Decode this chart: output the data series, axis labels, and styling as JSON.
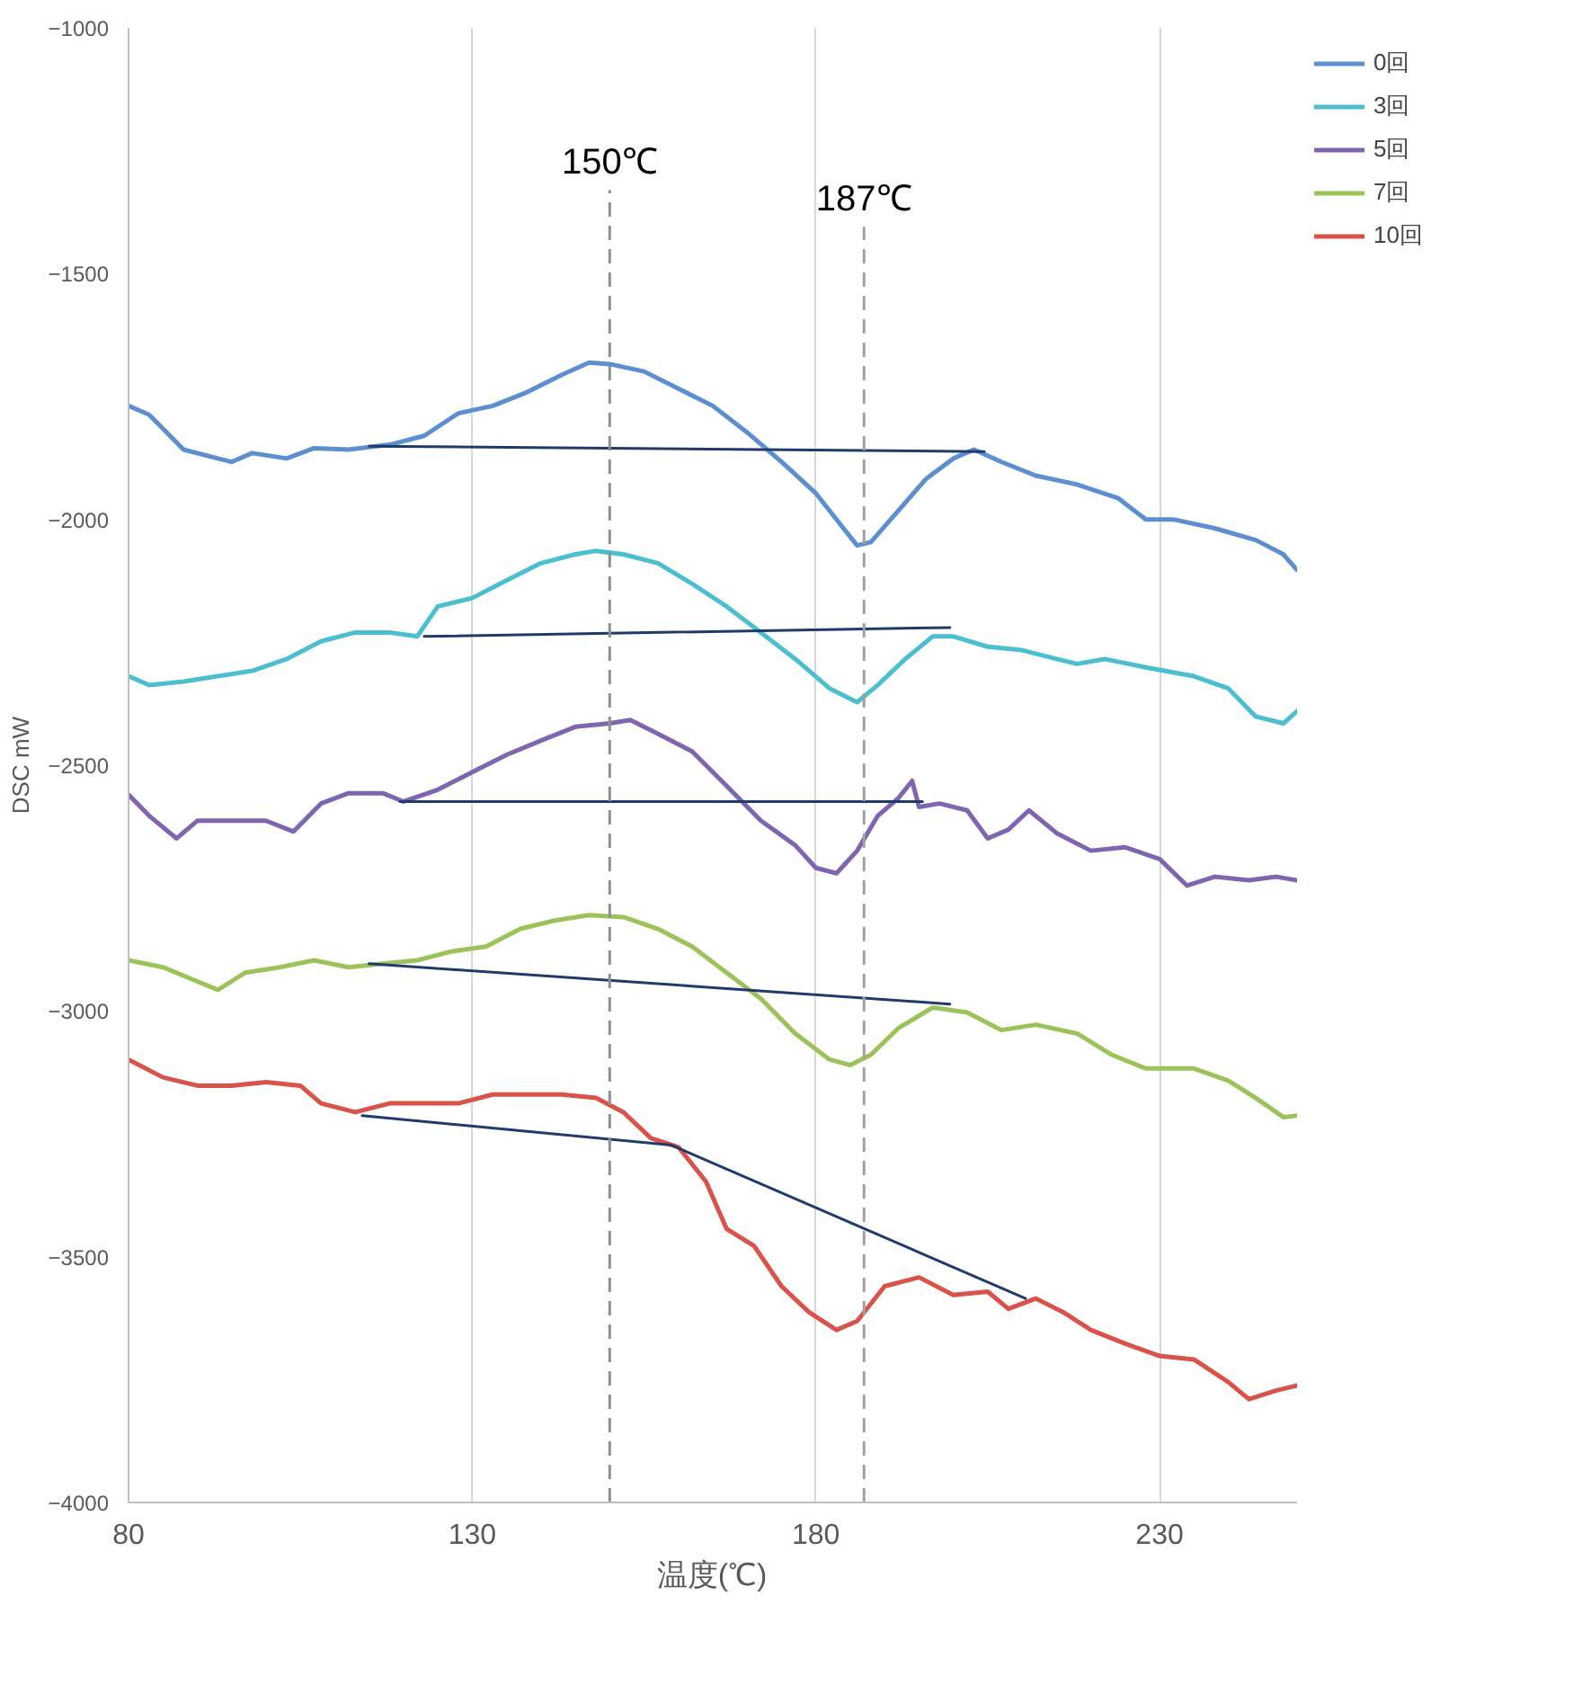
{
  "chart_data": {
    "type": "line",
    "xlabel": "温度(℃)",
    "ylabel": "DSC mW",
    "xlim": [
      80,
      250
    ],
    "ylim": [
      -4000,
      -1000
    ],
    "xticks": [
      80,
      130,
      180,
      230
    ],
    "yticks": [
      -4000,
      -3500,
      -3000,
      -2500,
      -2000,
      -1500,
      -1000
    ],
    "grid": "x",
    "legend": "right",
    "ref_lines": [
      {
        "axis": "x",
        "value": 150,
        "label": "150℃",
        "color": "#909090",
        "line_style": "dashed"
      },
      {
        "axis": "x",
        "value": 187,
        "label": "187℃",
        "color": "#a0a0a0",
        "line_style": "dashed"
      }
    ],
    "series": [
      {
        "name": "0回",
        "color": "#5b8fcf",
        "x": [
          80,
          83,
          88,
          93,
          95,
          98,
          103,
          107,
          112,
          118,
          123,
          128,
          133,
          138,
          143,
          147,
          150,
          155,
          160,
          165,
          170,
          175,
          180,
          184,
          186,
          188,
          192,
          196,
          200,
          203,
          207,
          212,
          218,
          224,
          228,
          232,
          238,
          244,
          248,
          250
        ],
        "values": [
          -1769,
          -1787,
          -1858,
          -1876,
          -1883,
          -1865,
          -1876,
          -1855,
          -1858,
          -1848,
          -1830,
          -1784,
          -1769,
          -1741,
          -1706,
          -1681,
          -1684,
          -1699,
          -1734,
          -1769,
          -1823,
          -1883,
          -1947,
          -2018,
          -2053,
          -2046,
          -1982,
          -1918,
          -1876,
          -1858,
          -1883,
          -1911,
          -1929,
          -1957,
          -2000,
          -2000,
          -2018,
          -2042,
          -2071,
          -2103
        ]
      },
      {
        "name": "3回",
        "color": "#4bbfcf",
        "x": [
          80,
          83,
          88,
          93,
          98,
          103,
          108,
          113,
          118,
          122,
          125,
          130,
          135,
          140,
          145,
          148,
          152,
          157,
          162,
          167,
          172,
          177,
          182,
          186,
          189,
          193,
          197,
          200,
          205,
          210,
          215,
          218,
          222,
          228,
          235,
          240,
          244,
          248,
          250
        ],
        "values": [
          -2319,
          -2337,
          -2330,
          -2319,
          -2308,
          -2284,
          -2248,
          -2230,
          -2230,
          -2238,
          -2177,
          -2160,
          -2124,
          -2089,
          -2071,
          -2064,
          -2071,
          -2089,
          -2131,
          -2177,
          -2230,
          -2284,
          -2344,
          -2372,
          -2337,
          -2284,
          -2238,
          -2238,
          -2259,
          -2266,
          -2284,
          -2294,
          -2284,
          -2301,
          -2319,
          -2344,
          -2401,
          -2415,
          -2390
        ]
      },
      {
        "name": "5回",
        "color": "#7f65b0",
        "x": [
          80,
          83,
          87,
          90,
          95,
          100,
          104,
          108,
          112,
          117,
          120,
          125,
          130,
          135,
          140,
          145,
          150,
          153,
          157,
          162,
          167,
          172,
          177,
          180,
          183,
          186,
          189,
          192,
          194,
          195,
          198,
          202,
          205,
          208,
          211,
          215,
          220,
          225,
          230,
          234,
          238,
          243,
          247,
          250
        ],
        "values": [
          -2560,
          -2603,
          -2649,
          -2613,
          -2613,
          -2613,
          -2635,
          -2578,
          -2557,
          -2557,
          -2574,
          -2550,
          -2514,
          -2479,
          -2450,
          -2422,
          -2415,
          -2408,
          -2436,
          -2472,
          -2542,
          -2613,
          -2663,
          -2709,
          -2720,
          -2674,
          -2603,
          -2567,
          -2532,
          -2585,
          -2578,
          -2592,
          -2649,
          -2631,
          -2592,
          -2638,
          -2674,
          -2667,
          -2691,
          -2745,
          -2727,
          -2734,
          -2727,
          -2734
        ]
      },
      {
        "name": "7回",
        "color": "#9bc35a",
        "x": [
          80,
          85,
          90,
          93,
          97,
          102,
          107,
          112,
          117,
          122,
          127,
          132,
          137,
          142,
          147,
          152,
          157,
          162,
          167,
          172,
          177,
          182,
          185,
          188,
          192,
          197,
          202,
          207,
          212,
          218,
          223,
          228,
          235,
          240,
          244,
          248,
          250
        ],
        "values": [
          -2897,
          -2911,
          -2940,
          -2957,
          -2922,
          -2911,
          -2897,
          -2911,
          -2904,
          -2897,
          -2879,
          -2869,
          -2833,
          -2816,
          -2805,
          -2809,
          -2833,
          -2869,
          -2922,
          -2975,
          -3046,
          -3099,
          -3110,
          -3089,
          -3035,
          -2993,
          -3003,
          -3039,
          -3028,
          -3046,
          -3089,
          -3117,
          -3117,
          -3142,
          -3177,
          -3216,
          -3213
        ]
      },
      {
        "name": "10回",
        "color": "#d9534a",
        "x": [
          80,
          85,
          90,
          95,
          100,
          105,
          108,
          113,
          118,
          123,
          128,
          133,
          138,
          143,
          148,
          152,
          156,
          160,
          164,
          167,
          171,
          175,
          179,
          183,
          186,
          190,
          195,
          200,
          205,
          208,
          212,
          216,
          220,
          225,
          230,
          235,
          240,
          243,
          247,
          250
        ],
        "values": [
          -3099,
          -3135,
          -3152,
          -3152,
          -3145,
          -3152,
          -3188,
          -3206,
          -3188,
          -3188,
          -3188,
          -3170,
          -3170,
          -3170,
          -3177,
          -3206,
          -3259,
          -3277,
          -3347,
          -3443,
          -3478,
          -3560,
          -3613,
          -3649,
          -3631,
          -3560,
          -3542,
          -3578,
          -3571,
          -3606,
          -3585,
          -3613,
          -3649,
          -3677,
          -3702,
          -3709,
          -3755,
          -3790,
          -3772,
          -3762
        ]
      },
      {
        "type": "line",
        "color": "#1f3b6e",
        "x": [
          115,
          204.5
        ],
        "values": [
          -1851,
          -1862
        ]
      },
      {
        "type": "line",
        "color": "#1f3b6e",
        "x": [
          123,
          199.5
        ],
        "values": [
          -2238,
          -2220
        ]
      },
      {
        "type": "line",
        "color": "#1f3b6e",
        "x": [
          119.5,
          195.5
        ],
        "values": [
          -2574,
          -2574
        ]
      },
      {
        "type": "line",
        "color": "#1f3b6e",
        "x": [
          115,
          199.5
        ],
        "values": [
          -2904,
          -2986
        ]
      },
      {
        "type": "line",
        "color": "#1f3b6e",
        "x": [
          114,
          159,
          210.5
        ],
        "values": [
          -3213,
          -3273,
          -3585
        ]
      }
    ]
  }
}
